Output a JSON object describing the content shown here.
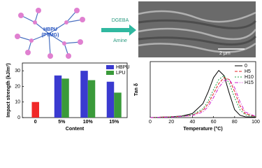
{
  "diagram": {
    "node_label_1": "HBPU",
    "node_label_2": "(PTMG)",
    "arrow_label_top": "DGEBA",
    "arrow_label_bottom": "Amine",
    "scale_bar": "2 μm"
  },
  "chart_data": [
    {
      "type": "bar",
      "x_label": "Content",
      "y_label": "Impact strength (kJ/m²)",
      "categories": [
        "0",
        "5%",
        "10%",
        "15%"
      ],
      "series": [
        {
          "name": "HBPU",
          "color": "#3a3ad0",
          "values": [
            null,
            27,
            30,
            23
          ]
        },
        {
          "name": "LPU",
          "color": "#3a9a3a",
          "values": [
            null,
            25,
            24,
            16
          ]
        },
        {
          "color": "#f02828",
          "values": [
            10,
            null,
            null,
            null
          ]
        }
      ],
      "ylim": [
        0,
        35
      ],
      "yticks": [
        0,
        10,
        20,
        30
      ],
      "legend": "top-right"
    },
    {
      "type": "line",
      "x_label": "Temperature (°C)",
      "y_label": "Tan δ",
      "x": [
        0,
        10,
        20,
        30,
        40,
        50,
        55,
        60,
        65,
        70,
        75,
        80,
        85,
        90,
        100
      ],
      "series": [
        {
          "name": "0",
          "color": "#000000",
          "dash": "none",
          "values": [
            0,
            0.01,
            0.02,
            0.04,
            0.1,
            0.35,
            0.65,
            1.0,
            1.18,
            1.05,
            0.6,
            0.2,
            0.06,
            0.02,
            0.01
          ]
        },
        {
          "name": "H5",
          "color": "#e02020",
          "dash": "4 2",
          "values": [
            0,
            0.01,
            0.02,
            0.03,
            0.06,
            0.18,
            0.35,
            0.6,
            0.85,
            1.0,
            0.95,
            0.65,
            0.3,
            0.1,
            0.02
          ]
        },
        {
          "name": "H10",
          "color": "#20a040",
          "dash": "2 2",
          "values": [
            0,
            0.01,
            0.02,
            0.03,
            0.07,
            0.22,
            0.42,
            0.7,
            0.95,
            1.05,
            0.85,
            0.5,
            0.2,
            0.07,
            0.02
          ]
        },
        {
          "name": "H15",
          "color": "#d020d0",
          "dash": "5 2 1 2",
          "values": [
            0,
            0.01,
            0.01,
            0.03,
            0.05,
            0.14,
            0.28,
            0.5,
            0.75,
            0.92,
            0.95,
            0.75,
            0.4,
            0.14,
            0.03
          ]
        }
      ],
      "xlim": [
        0,
        100
      ],
      "xticks": [
        0,
        20,
        40,
        60,
        80,
        100
      ],
      "ylim": [
        0,
        1.4
      ],
      "legend": "top-right"
    }
  ]
}
